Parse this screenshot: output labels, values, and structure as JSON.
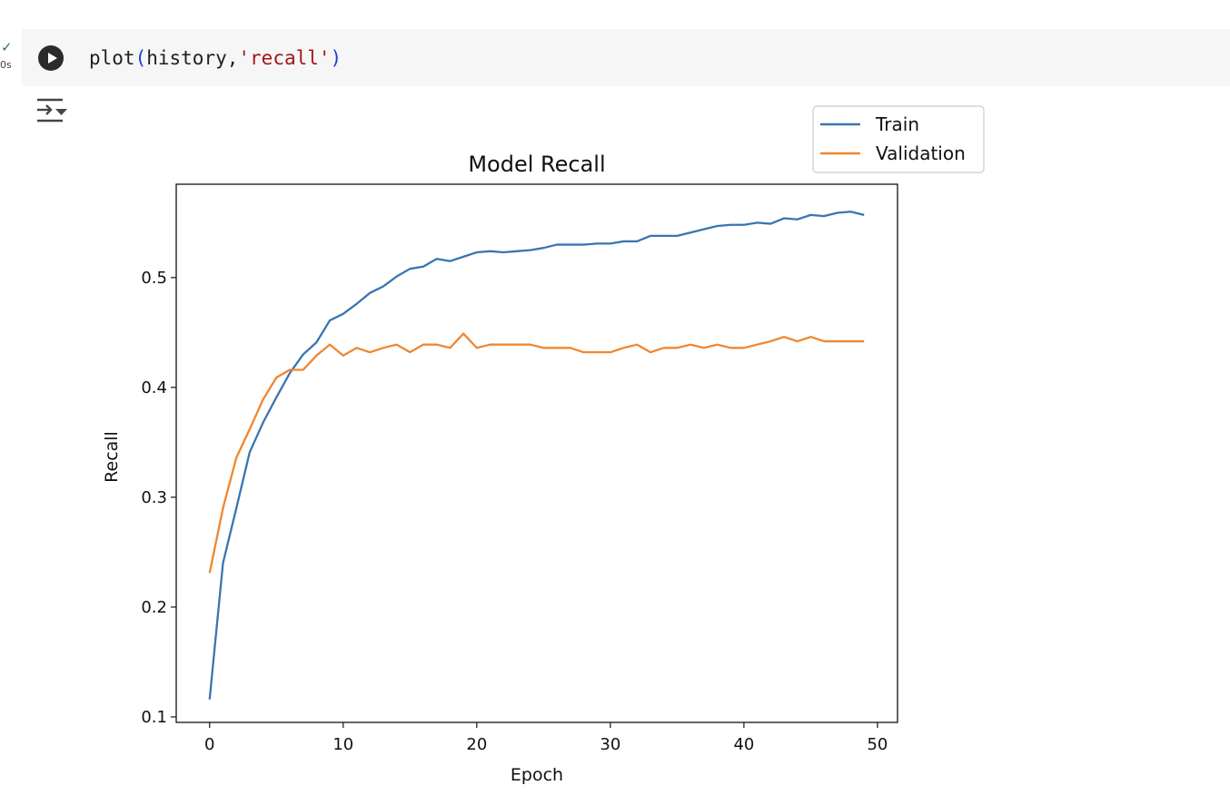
{
  "cell": {
    "status_check": "✓",
    "exec_time": "0s",
    "code": {
      "fn": "plot",
      "open": "(",
      "arg": "history,",
      "str": "'recall'",
      "close": ")"
    }
  },
  "colors": {
    "train": "#3a75b0",
    "validation": "#f0862f",
    "cell_background": "#f6f6f6",
    "run_button": "#2b2b2b"
  },
  "icons": {
    "run": "play-circle-icon",
    "status": "check-icon",
    "output": "output-collapse-icon"
  },
  "chart_data": {
    "type": "line",
    "title": "Model Recall",
    "xlabel": "Epoch",
    "ylabel": "Recall",
    "xlim": [
      -2.5,
      51.5
    ],
    "ylim": [
      0.095,
      0.585
    ],
    "xticks": [
      0,
      10,
      20,
      30,
      40,
      50
    ],
    "yticks": [
      0.1,
      0.2,
      0.3,
      0.4,
      0.5
    ],
    "grid": false,
    "legend_position": "top-right, outside plot",
    "x": [
      0,
      1,
      2,
      3,
      4,
      5,
      6,
      7,
      8,
      9,
      10,
      11,
      12,
      13,
      14,
      15,
      16,
      17,
      18,
      19,
      20,
      21,
      22,
      23,
      24,
      25,
      26,
      27,
      28,
      29,
      30,
      31,
      32,
      33,
      34,
      35,
      36,
      37,
      38,
      39,
      40,
      41,
      42,
      43,
      44,
      45,
      46,
      47,
      48,
      49
    ],
    "series": [
      {
        "name": "Train",
        "values": [
          0.116,
          0.24,
          0.29,
          0.341,
          0.368,
          0.391,
          0.413,
          0.43,
          0.441,
          0.461,
          0.467,
          0.476,
          0.486,
          0.492,
          0.501,
          0.508,
          0.51,
          0.517,
          0.515,
          0.519,
          0.523,
          0.524,
          0.523,
          0.524,
          0.525,
          0.527,
          0.53,
          0.53,
          0.53,
          0.531,
          0.531,
          0.533,
          0.533,
          0.538,
          0.538,
          0.538,
          0.541,
          0.544,
          0.547,
          0.548,
          0.548,
          0.55,
          0.549,
          0.554,
          0.553,
          0.557,
          0.556,
          0.559,
          0.56,
          0.557
        ]
      },
      {
        "name": "Validation",
        "values": [
          0.231,
          0.29,
          0.336,
          0.362,
          0.389,
          0.409,
          0.416,
          0.416,
          0.429,
          0.439,
          0.429,
          0.436,
          0.432,
          0.436,
          0.439,
          0.432,
          0.439,
          0.439,
          0.436,
          0.449,
          0.436,
          0.439,
          0.439,
          0.439,
          0.439,
          0.436,
          0.436,
          0.436,
          0.432,
          0.432,
          0.432,
          0.436,
          0.439,
          0.432,
          0.436,
          0.436,
          0.439,
          0.436,
          0.439,
          0.436,
          0.436,
          0.439,
          0.442,
          0.446,
          0.442,
          0.446,
          0.442,
          0.442,
          0.442,
          0.442
        ]
      }
    ]
  }
}
